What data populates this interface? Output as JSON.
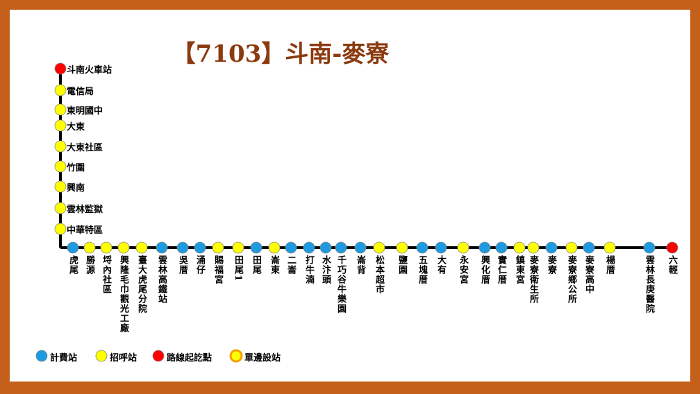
{
  "title": "【7103】斗南-麥寮",
  "legend": [
    {
      "label": "計費站",
      "color": "#1e9be0"
    },
    {
      "label": "招呼站",
      "color": "#ffff00"
    },
    {
      "label": "路線起訖點",
      "color": "#ff0000"
    },
    {
      "label": "單邊設站",
      "color": "#ffff00",
      "ring": "#f5a000"
    }
  ],
  "vertical_stops": [
    {
      "label": "斗南火車站",
      "kind": "路線起訖點"
    },
    {
      "label": "電信局",
      "kind": "招呼站"
    },
    {
      "label": "東明國中",
      "kind": "招呼站"
    },
    {
      "label": "大東",
      "kind": "招呼站"
    },
    {
      "label": "大東社區",
      "kind": "招呼站"
    },
    {
      "label": "竹圍",
      "kind": "招呼站"
    },
    {
      "label": "興南",
      "kind": "招呼站"
    },
    {
      "label": "雲林監獄",
      "kind": "招呼站"
    },
    {
      "label": "中華特區",
      "kind": "招呼站"
    }
  ],
  "horizontal_stops": [
    {
      "label": "虎尾",
      "kind": "計費站"
    },
    {
      "label": "勝源",
      "kind": "招呼站"
    },
    {
      "label": "埒內社區",
      "kind": "招呼站"
    },
    {
      "label": "興隆毛巾觀光工廠",
      "kind": "招呼站"
    },
    {
      "label": "臺大虎尾分院",
      "kind": "招呼站"
    },
    {
      "label": "雲林高鐵站",
      "kind": "計費站"
    },
    {
      "label": "吳厝",
      "kind": "計費站"
    },
    {
      "label": "涌仔",
      "kind": "計費站"
    },
    {
      "label": "賜福宮",
      "kind": "招呼站"
    },
    {
      "label": "田尾1",
      "kind": "招呼站"
    },
    {
      "label": "田尾",
      "kind": "計費站"
    },
    {
      "label": "崙東",
      "kind": "招呼站"
    },
    {
      "label": "二崙",
      "kind": "計費站"
    },
    {
      "label": "打牛湳",
      "kind": "計費站"
    },
    {
      "label": "水汴頭",
      "kind": "計費站"
    },
    {
      "label": "千巧谷牛樂園",
      "kind": "計費站"
    },
    {
      "label": "崙背",
      "kind": "計費站"
    },
    {
      "label": "松本超市",
      "kind": "招呼站"
    },
    {
      "label": "鹽園",
      "kind": "招呼站"
    },
    {
      "label": "五塊厝",
      "kind": "計費站"
    },
    {
      "label": "大有",
      "kind": "計費站"
    },
    {
      "label": "永安宮",
      "kind": "招呼站"
    },
    {
      "label": "興化厝",
      "kind": "計費站"
    },
    {
      "label": "實仁厝",
      "kind": "計費站"
    },
    {
      "label": "鎮東宮",
      "kind": "招呼站"
    },
    {
      "label": "麥寮衛生所",
      "kind": "招呼站"
    },
    {
      "label": "麥寮",
      "kind": "計費站"
    },
    {
      "label": "麥寮鄉公所",
      "kind": "招呼站"
    },
    {
      "label": "麥寮高中",
      "kind": "計費站"
    },
    {
      "label": "楊厝",
      "kind": "招呼站"
    },
    {
      "label": "雲林長庚醫院",
      "kind": "計費站"
    },
    {
      "label": "六輕",
      "kind": "路線起訖點"
    }
  ]
}
